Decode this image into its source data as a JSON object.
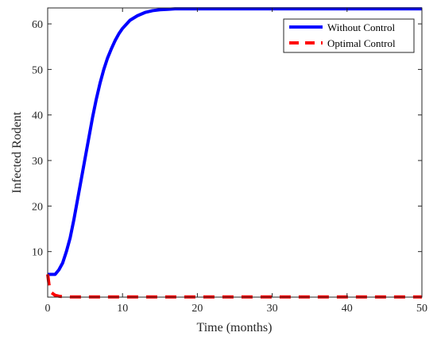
{
  "chart_data": {
    "type": "line",
    "title": "",
    "xlabel": "Time (months)",
    "ylabel": "Infected Rodent",
    "xlim": [
      0,
      50
    ],
    "ylim": [
      0,
      63.5
    ],
    "xticks": [
      0,
      10,
      20,
      30,
      40,
      50
    ],
    "yticks": [
      10,
      20,
      30,
      40,
      50,
      60
    ],
    "grid": false,
    "legend_position": "top-right",
    "series": [
      {
        "name": "Without Control",
        "color": "#0000ff",
        "style": "solid",
        "x": [
          0,
          1,
          1.5,
          2,
          2.5,
          3,
          3.5,
          4,
          4.5,
          5,
          5.5,
          6,
          6.5,
          7,
          7.5,
          8,
          8.5,
          9,
          9.5,
          10,
          11,
          12,
          13,
          14,
          15,
          16,
          17,
          18,
          20,
          25,
          30,
          35,
          40,
          45,
          50
        ],
        "y": [
          5,
          5,
          6,
          7.5,
          10,
          13,
          17,
          21.5,
          26,
          30.5,
          35,
          39.5,
          43.5,
          47,
          50,
          52.5,
          54.5,
          56.3,
          57.8,
          59,
          60.8,
          61.8,
          62.5,
          62.9,
          63.1,
          63.2,
          63.3,
          63.3,
          63.3,
          63.3,
          63.3,
          63.3,
          63.3,
          63.3,
          63.3
        ]
      },
      {
        "name": "Optimal Control",
        "color": "#ff0000",
        "style": "dashed",
        "x": [
          0,
          0.2,
          0.5,
          1,
          1.5,
          2,
          3,
          5,
          10,
          20,
          30,
          40,
          50
        ],
        "y": [
          5,
          2.5,
          1,
          0.4,
          0.2,
          0.1,
          0.05,
          0.05,
          0.05,
          0.05,
          0.05,
          0.05,
          0.05
        ]
      }
    ]
  }
}
